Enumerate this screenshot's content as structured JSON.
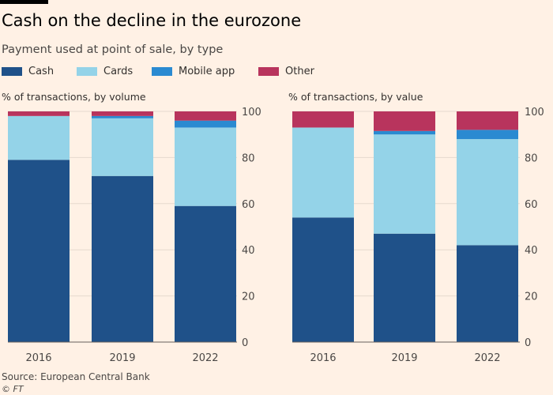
{
  "header": {
    "title": "Cash on the decline in the eurozone",
    "subtitle": "Payment used at point of sale, by type"
  },
  "legend": [
    {
      "label": "Cash",
      "color": "#1F5189"
    },
    {
      "label": "Cards",
      "color": "#94D3E8"
    },
    {
      "label": "Mobile app",
      "color": "#2A8AD1"
    },
    {
      "label": "Other",
      "color": "#B8345D"
    }
  ],
  "chart_data": [
    {
      "type": "bar",
      "stacked": true,
      "title": "% of transactions, by volume",
      "categories": [
        "2016",
        "2019",
        "2022"
      ],
      "series": [
        {
          "name": "Cash",
          "values": [
            79,
            72,
            59
          ]
        },
        {
          "name": "Cards",
          "values": [
            19,
            25,
            34
          ]
        },
        {
          "name": "Mobile app",
          "values": [
            0,
            1,
            3
          ]
        },
        {
          "name": "Other",
          "values": [
            2,
            2,
            4
          ]
        }
      ],
      "ylim": [
        0,
        100
      ],
      "yticks": [
        0,
        20,
        40,
        60,
        80,
        100
      ],
      "ytick_position": "right",
      "grid": true
    },
    {
      "type": "bar",
      "stacked": true,
      "title": "% of transactions, by value",
      "categories": [
        "2016",
        "2019",
        "2022"
      ],
      "series": [
        {
          "name": "Cash",
          "values": [
            54,
            47,
            42
          ]
        },
        {
          "name": "Cards",
          "values": [
            39,
            43,
            46
          ]
        },
        {
          "name": "Mobile app",
          "values": [
            0,
            1.5,
            4
          ]
        },
        {
          "name": "Other",
          "values": [
            7,
            8.5,
            8
          ]
        }
      ],
      "ylim": [
        0,
        100
      ],
      "yticks": [
        0,
        20,
        40,
        60,
        80,
        100
      ],
      "ytick_position": "right",
      "grid": true
    }
  ],
  "footer": {
    "source": "Source: European Central Bank",
    "credit": "© FT"
  }
}
